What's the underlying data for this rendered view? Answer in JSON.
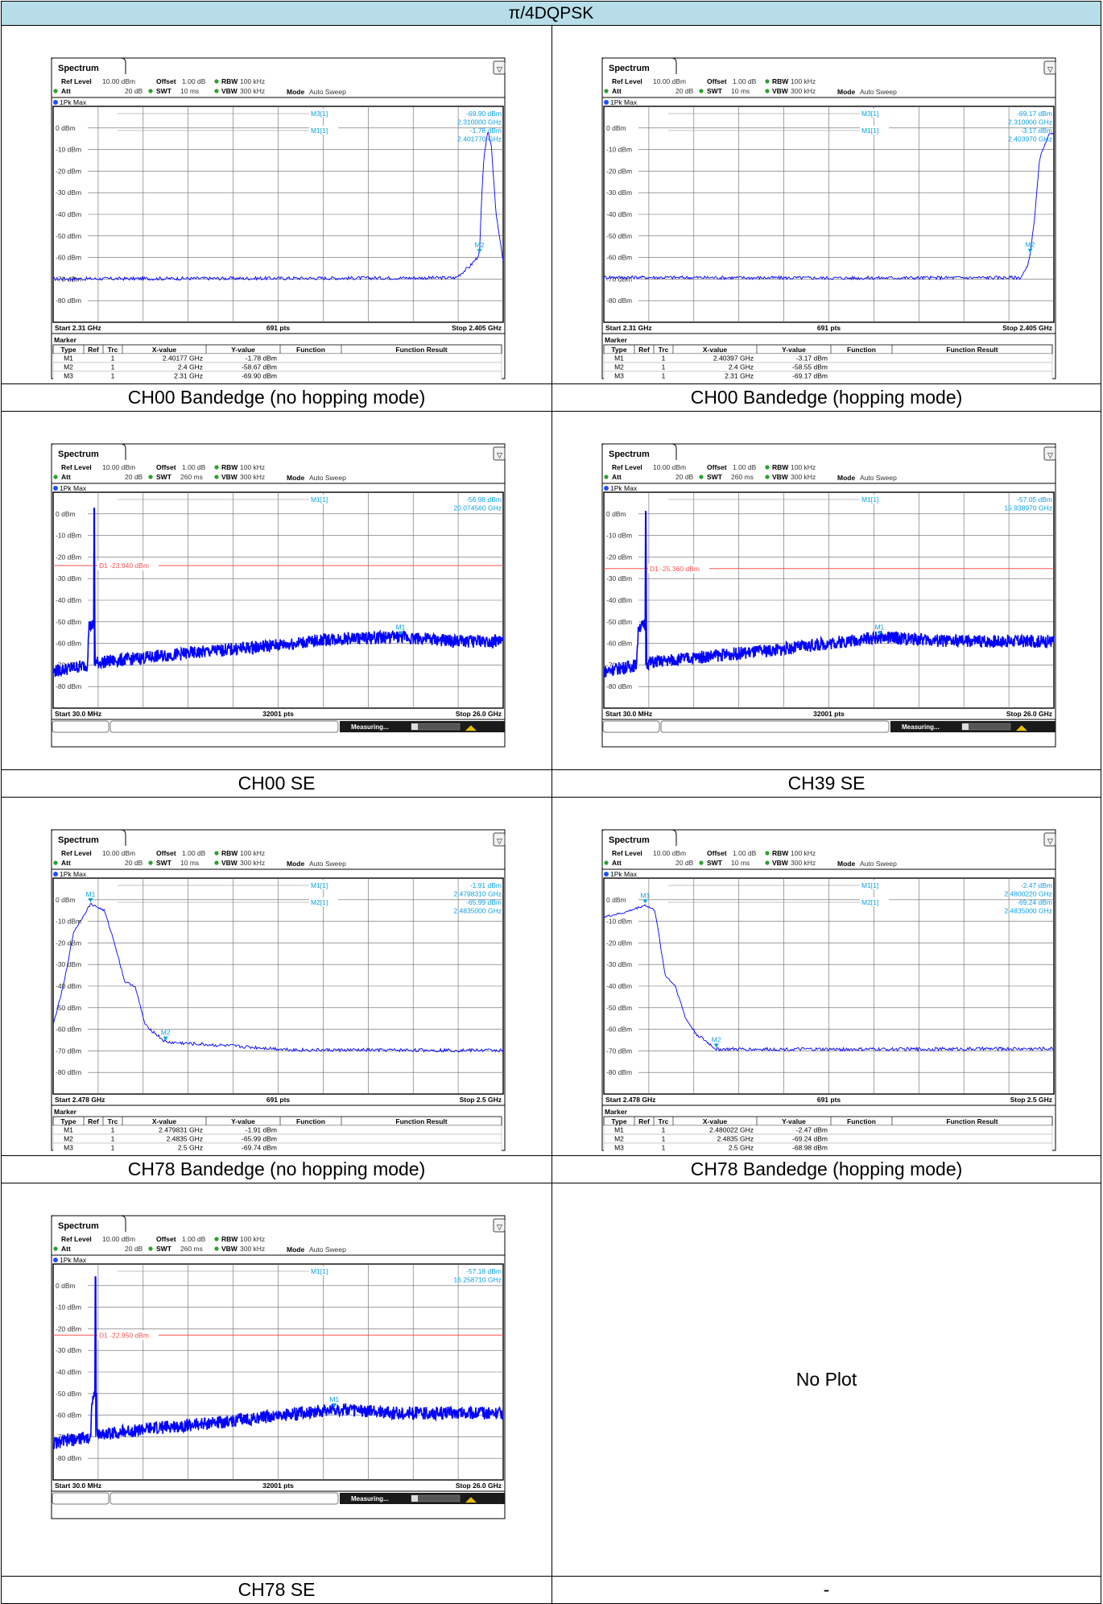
{
  "header": {
    "title": "π/4DQPSK"
  },
  "common": {
    "spectrum_tab": "Spectrum",
    "ref_level_label": "Ref Level",
    "ref_level_value": "10.00 dBm",
    "att_label": "Att",
    "att_value": "20 dB",
    "offset_label": "Offset",
    "offset_value": "1.00 dB",
    "rbw_label": "RBW",
    "rbw_value": "100 kHz",
    "swt_label": "SWT",
    "vbw_label": "VBW",
    "vbw_value": "300 kHz",
    "mode_label": "Mode",
    "mode_value": "Auto Sweep",
    "trace_label": "1Pk Max",
    "measuring": "Measuring...",
    "marker_title": "Marker",
    "table_headers": [
      "Type",
      "Ref",
      "Trc",
      "X-value",
      "Y-value",
      "Function",
      "Function Result"
    ],
    "colors": {
      "trace": "#0000ff",
      "marker_text": "#0aa0e6",
      "limit_line": "#ff5050",
      "header_bg": "#b6dde8",
      "status_bar": "#1a1a1a"
    }
  },
  "plots": [
    {
      "caption": "CH00 Bandedge (no hopping mode)",
      "swt": "10 ms",
      "start": "Start 2.31 GHz",
      "pts": "691 pts",
      "stop": "Stop 2.405 GHz",
      "y_labels": [
        "0 dBm",
        "-10 dBm",
        "-20 dBm",
        "-30 dBm",
        "-40 dBm",
        "-50 dBm",
        "-60 dBm",
        "-70 dBm",
        "-80 dBm"
      ],
      "readout": [
        [
          "M3[1]",
          "-69.90 dBm"
        ],
        [
          "",
          "2.310000 GHz"
        ],
        [
          "M1[1]",
          "-1.78 dBm"
        ],
        [
          "",
          "2.401770 GHz"
        ]
      ],
      "marker_labels": [
        "M2"
      ],
      "markers": [
        [
          "M1",
          "",
          "1",
          "2.40177 GHz",
          "-1.78 dBm",
          "",
          ""
        ],
        [
          "M2",
          "",
          "1",
          "2.4 GHz",
          "-58.67 dBm",
          "",
          ""
        ],
        [
          "M3",
          "",
          "1",
          "2.31 GHz",
          "-69.90 dBm",
          "",
          ""
        ]
      ],
      "chart_data": {
        "type": "line",
        "x_range_ghz": [
          2.31,
          2.405
        ],
        "ylim": [
          -90,
          10
        ],
        "points": [
          [
            2.31,
            -69.9
          ],
          [
            2.36,
            -69.6
          ],
          [
            2.395,
            -69.4
          ],
          [
            2.398,
            -64
          ],
          [
            2.4,
            -58.67
          ],
          [
            2.4005,
            -30
          ],
          [
            2.401,
            -12
          ],
          [
            2.40177,
            -1.78
          ],
          [
            2.4025,
            -8
          ],
          [
            2.4035,
            -40
          ],
          [
            2.405,
            -62
          ]
        ]
      }
    },
    {
      "caption": "CH00 Bandedge (hopping mode)",
      "swt": "10 ms",
      "start": "Start 2.31 GHz",
      "pts": "691 pts",
      "stop": "Stop 2.405 GHz",
      "y_labels": [
        "0 dBm",
        "-10 dBm",
        "-20 dBm",
        "-30 dBm",
        "-40 dBm",
        "-50 dBm",
        "-60 dBm",
        "-70 dBm",
        "-80 dBm"
      ],
      "readout": [
        [
          "M3[1]",
          "-69.17 dBm"
        ],
        [
          "",
          "2.310000 GHz"
        ],
        [
          "M1[1]",
          "-3.17 dBm"
        ],
        [
          "",
          "2.403970 GHz"
        ]
      ],
      "marker_labels": [
        "M2"
      ],
      "markers": [
        [
          "M1",
          "",
          "1",
          "2.40397 GHz",
          "-3.17 dBm",
          "",
          ""
        ],
        [
          "M2",
          "",
          "1",
          "2.4 GHz",
          "-58.55 dBm",
          "",
          ""
        ],
        [
          "M3",
          "",
          "1",
          "2.31 GHz",
          "-69.17 dBm",
          "",
          ""
        ]
      ],
      "chart_data": {
        "type": "line",
        "x_range_ghz": [
          2.31,
          2.405
        ],
        "ylim": [
          -90,
          10
        ],
        "points": [
          [
            2.31,
            -69.17
          ],
          [
            2.36,
            -69.5
          ],
          [
            2.398,
            -69.3
          ],
          [
            2.3995,
            -64
          ],
          [
            2.4,
            -58.55
          ],
          [
            2.401,
            -40
          ],
          [
            2.402,
            -14
          ],
          [
            2.40397,
            -3.17
          ],
          [
            2.405,
            -2
          ]
        ]
      }
    },
    {
      "caption": "CH00 SE",
      "swt": "260 ms",
      "start": "Start 30.0 MHz",
      "pts": "32001 pts",
      "stop": "Stop 26.0 GHz",
      "y_labels": [
        "0 dBm",
        "-10 dBm",
        "-20 dBm",
        "-30 dBm",
        "-40 dBm",
        "-50 dBm",
        "-60 dBm",
        "-70 dBm",
        "-80 dBm"
      ],
      "readout": [
        [
          "M1[1]",
          "-56.98 dBm"
        ],
        [
          "",
          "20.074560 GHz"
        ]
      ],
      "limit_line": "D1  -23.940 dBm",
      "marker_labels": [
        "M1"
      ],
      "chart_data": {
        "type": "line",
        "x_range_ghz": [
          0.03,
          26.0
        ],
        "ylim": [
          -90,
          10
        ],
        "limit_dbm": -23.94,
        "points": [
          [
            0.03,
            -73
          ],
          [
            2.0,
            -70
          ],
          [
            2.4,
            2.5
          ],
          [
            2.45,
            -69
          ],
          [
            6,
            -66
          ],
          [
            10,
            -63
          ],
          [
            14,
            -60
          ],
          [
            16,
            -58
          ],
          [
            20.07,
            -56.98
          ],
          [
            23,
            -59
          ],
          [
            26,
            -59
          ]
        ]
      }
    },
    {
      "caption": "CH39 SE",
      "swt": "260 ms",
      "start": "Start 30.0 MHz",
      "pts": "32001 pts",
      "stop": "Stop 26.0 GHz",
      "y_labels": [
        "0 dBm",
        "-10 dBm",
        "-20 dBm",
        "-30 dBm",
        "-40 dBm",
        "-50 dBm",
        "-60 dBm",
        "-70 dBm",
        "-80 dBm"
      ],
      "readout": [
        [
          "M1[1]",
          "-57.05 dBm"
        ],
        [
          "",
          "15.938970 GHz"
        ]
      ],
      "limit_line": "D1  -25.360 dBm",
      "marker_labels": [
        "M1"
      ],
      "chart_data": {
        "type": "line",
        "x_range_ghz": [
          0.03,
          26.0
        ],
        "ylim": [
          -90,
          10
        ],
        "limit_dbm": -25.36,
        "points": [
          [
            0.03,
            -73
          ],
          [
            1.9,
            -70
          ],
          [
            2.44,
            1.0
          ],
          [
            2.5,
            -69
          ],
          [
            6,
            -66
          ],
          [
            10,
            -63
          ],
          [
            15.94,
            -57.05
          ],
          [
            20,
            -59
          ],
          [
            26,
            -59
          ]
        ]
      }
    },
    {
      "caption": "CH78 Bandedge (no hopping mode)",
      "swt": "10 ms",
      "start": "Start 2.478 GHz",
      "pts": "691 pts",
      "stop": "Stop 2.5 GHz",
      "y_labels": [
        "0 dBm",
        "-10 dBm",
        "-20 dBm",
        "-30 dBm",
        "-40 dBm",
        "-50 dBm",
        "-60 dBm",
        "-70 dBm",
        "-80 dBm"
      ],
      "readout": [
        [
          "M1[1]",
          "-1.91 dBm"
        ],
        [
          "",
          "2.4798310 GHz"
        ],
        [
          "M2[1]",
          "-65.99 dBm"
        ],
        [
          "",
          "2.4835000 GHz"
        ]
      ],
      "marker_labels": [
        "M1",
        "M2"
      ],
      "markers": [
        [
          "M1",
          "",
          "1",
          "2.479831 GHz",
          "-1.91 dBm",
          "",
          ""
        ],
        [
          "M2",
          "",
          "1",
          "2.4835 GHz",
          "-65.99 dBm",
          "",
          ""
        ],
        [
          "M3",
          "",
          "1",
          "2.5 GHz",
          "-69.74 dBm",
          "",
          ""
        ]
      ],
      "chart_data": {
        "type": "line",
        "x_range_ghz": [
          2.478,
          2.5
        ],
        "ylim": [
          -90,
          10
        ],
        "points": [
          [
            2.478,
            -58
          ],
          [
            2.4785,
            -40
          ],
          [
            2.479,
            -15
          ],
          [
            2.47983,
            -1.91
          ],
          [
            2.4805,
            -5
          ],
          [
            2.481,
            -20
          ],
          [
            2.4815,
            -38
          ],
          [
            2.482,
            -40
          ],
          [
            2.4825,
            -58
          ],
          [
            2.4835,
            -65.99
          ],
          [
            2.49,
            -69.6
          ],
          [
            2.5,
            -69.74
          ]
        ]
      }
    },
    {
      "caption": "CH78 Bandedge (hopping mode)",
      "swt": "10 ms",
      "start": "Start 2.478 GHz",
      "pts": "691 pts",
      "stop": "Stop 2.5 GHz",
      "y_labels": [
        "0 dBm",
        "-10 dBm",
        "-20 dBm",
        "-30 dBm",
        "-40 dBm",
        "-50 dBm",
        "-60 dBm",
        "-70 dBm",
        "-80 dBm"
      ],
      "readout": [
        [
          "M1[1]",
          "-2.47 dBm"
        ],
        [
          "",
          "2.4800220 GHz"
        ],
        [
          "M2[1]",
          "-69.24 dBm"
        ],
        [
          "",
          "2.4835000 GHz"
        ]
      ],
      "marker_labels": [
        "M1",
        "M2"
      ],
      "markers": [
        [
          "M1",
          "",
          "1",
          "2.480022 GHz",
          "-2.47 dBm",
          "",
          ""
        ],
        [
          "M2",
          "",
          "1",
          "2.4835 GHz",
          "-69.24 dBm",
          "",
          ""
        ],
        [
          "M3",
          "",
          "1",
          "2.5 GHz",
          "-68.98 dBm",
          "",
          ""
        ]
      ],
      "chart_data": {
        "type": "line",
        "x_range_ghz": [
          2.478,
          2.5
        ],
        "ylim": [
          -90,
          10
        ],
        "points": [
          [
            2.478,
            -8
          ],
          [
            2.479,
            -6
          ],
          [
            2.48002,
            -2.47
          ],
          [
            2.4805,
            -5
          ],
          [
            2.481,
            -35
          ],
          [
            2.4815,
            -40
          ],
          [
            2.482,
            -55
          ],
          [
            2.4825,
            -62
          ],
          [
            2.4835,
            -69.24
          ],
          [
            2.49,
            -69.3
          ],
          [
            2.5,
            -68.98
          ]
        ]
      }
    },
    {
      "caption": "CH78 SE",
      "swt": "260 ms",
      "start": "Start 30.0 MHz",
      "pts": "32001 pts",
      "stop": "Stop 26.0 GHz",
      "y_labels": [
        "0 dBm",
        "-10 dBm",
        "-20 dBm",
        "-30 dBm",
        "-40 dBm",
        "-50 dBm",
        "-60 dBm",
        "-70 dBm",
        "-80 dBm"
      ],
      "readout": [
        [
          "M1[1]",
          "-57.18 dBm"
        ],
        [
          "",
          "16.258710 GHz"
        ]
      ],
      "limit_line": "D1  -22.950 dBm",
      "marker_labels": [
        "M1"
      ],
      "chart_data": {
        "type": "line",
        "x_range_ghz": [
          0.03,
          26.0
        ],
        "ylim": [
          -90,
          10
        ],
        "limit_dbm": -22.95,
        "points": [
          [
            0.03,
            -73
          ],
          [
            2.2,
            -70
          ],
          [
            2.48,
            4.0
          ],
          [
            2.55,
            -69
          ],
          [
            6,
            -66
          ],
          [
            10,
            -63
          ],
          [
            16.26,
            -57.18
          ],
          [
            20,
            -59
          ],
          [
            26,
            -59
          ]
        ]
      }
    }
  ],
  "empty_cell": {
    "text": "No Plot",
    "caption": "-"
  }
}
